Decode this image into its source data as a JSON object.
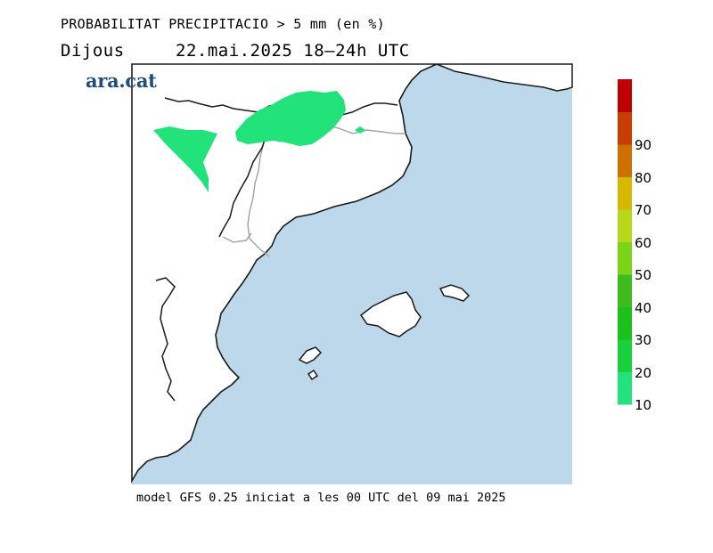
{
  "header": {
    "title": "PROBABILITAT PRECIPITACIO > 5 mm (en %)",
    "day": "Dijous",
    "date_time": "22.mai.2025  18—24h  UTC"
  },
  "logo": {
    "text": "ara.cat"
  },
  "footer": {
    "model_text": "model GFS 0.25 iniciat a les 00 UTC del 09 mai 2025"
  },
  "colors": {
    "sea": "#bcd8ea",
    "land": "#ffffff",
    "coastline": "#1a1a1a",
    "border": "#a6a6a6",
    "precip_10_20": "#22e27a"
  },
  "legend": {
    "labels": [
      "10",
      "20",
      "30",
      "40",
      "50",
      "60",
      "70",
      "80",
      "90"
    ],
    "bins": [
      {
        "from": 10,
        "to": 20,
        "color": "#22e27a"
      },
      {
        "from": 20,
        "to": 30,
        "color": "#18d23c"
      },
      {
        "from": 30,
        "to": 40,
        "color": "#1cc21c"
      },
      {
        "from": 40,
        "to": 50,
        "color": "#3cbd1c"
      },
      {
        "from": 50,
        "to": 60,
        "color": "#7cd41a"
      },
      {
        "from": 60,
        "to": 70,
        "color": "#b8d61a"
      },
      {
        "from": 70,
        "to": 80,
        "color": "#d6b800"
      },
      {
        "from": 80,
        "to": 90,
        "color": "#cd7000"
      },
      {
        "from": 90,
        "to": 100,
        "color": "#c83c00"
      },
      {
        "from": 100,
        "to": null,
        "color": "#c00000"
      }
    ]
  }
}
